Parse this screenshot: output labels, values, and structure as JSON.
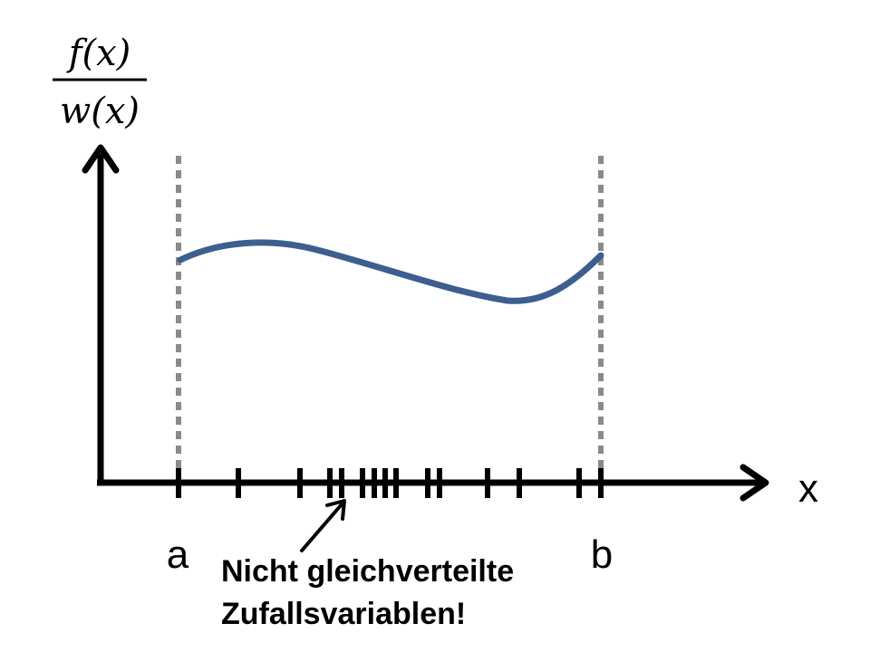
{
  "y_axis_label": {
    "numerator": "f(x)",
    "denominator": "w(x)"
  },
  "x_axis_label": "x",
  "lower_bound_label": "a",
  "upper_bound_label": "b",
  "annotation": {
    "line1": "Nicht gleichverteilte",
    "line2": "Zufallsvariablen!"
  },
  "colors": {
    "curve": "#3d5e8e",
    "axes": "#000000",
    "bound_lines": "#8a8a8a",
    "ticks": "#000000"
  }
}
